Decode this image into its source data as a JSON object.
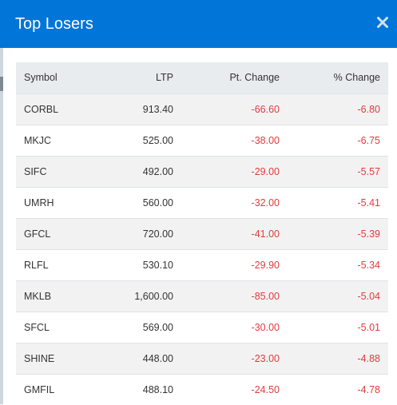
{
  "modal": {
    "title": "Top Losers",
    "close_icon": "close-icon",
    "accent_color": "#0275d8"
  },
  "table": {
    "columns": [
      "Symbol",
      "LTP",
      "Pt. Change",
      "% Change"
    ],
    "rows": [
      {
        "symbol": "CORBL",
        "ltp": "913.40",
        "pt_change": "-66.60",
        "pct_change": "-6.80"
      },
      {
        "symbol": "MKJC",
        "ltp": "525.00",
        "pt_change": "-38.00",
        "pct_change": "-6.75"
      },
      {
        "symbol": "SIFC",
        "ltp": "492.00",
        "pt_change": "-29.00",
        "pct_change": "-5.57"
      },
      {
        "symbol": "UMRH",
        "ltp": "560.00",
        "pt_change": "-32.00",
        "pct_change": "-5.41"
      },
      {
        "symbol": "GFCL",
        "ltp": "720.00",
        "pt_change": "-41.00",
        "pct_change": "-5.39"
      },
      {
        "symbol": "RLFL",
        "ltp": "530.10",
        "pt_change": "-29.90",
        "pct_change": "-5.34"
      },
      {
        "symbol": "MKLB",
        "ltp": "1,600.00",
        "pt_change": "-85.00",
        "pct_change": "-5.04"
      },
      {
        "symbol": "SFCL",
        "ltp": "569.00",
        "pt_change": "-30.00",
        "pct_change": "-5.01"
      },
      {
        "symbol": "SHINE",
        "ltp": "448.00",
        "pt_change": "-23.00",
        "pct_change": "-4.88"
      },
      {
        "symbol": "GMFIL",
        "ltp": "488.10",
        "pt_change": "-24.50",
        "pct_change": "-4.78"
      }
    ],
    "negative_color": "#e03c3c"
  }
}
